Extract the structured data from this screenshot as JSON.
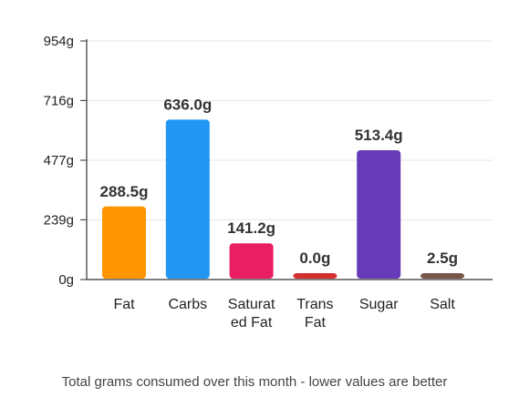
{
  "chart_data": {
    "type": "bar",
    "categories": [
      "Fat",
      "Carbs",
      "Saturated Fat",
      "Trans Fat",
      "Sugar",
      "Salt"
    ],
    "category_lines": [
      [
        "Fat"
      ],
      [
        "Carbs"
      ],
      [
        "Saturat",
        "ed Fat"
      ],
      [
        "Trans",
        "Fat"
      ],
      [
        "Sugar"
      ],
      [
        "Salt"
      ]
    ],
    "values": [
      288.5,
      636.0,
      141.2,
      0.0,
      513.4,
      2.5
    ],
    "data_labels": [
      "288.5g",
      "636.0g",
      "141.2g",
      "0.0g",
      "513.4g",
      "2.5g"
    ],
    "colors": [
      "#FF9500",
      "#2196F3",
      "#E91E63",
      "#D32F2F",
      "#673AB7",
      "#795548"
    ],
    "yticks": [
      0,
      239,
      477,
      716,
      954
    ],
    "ytick_labels": [
      "0g",
      "239g",
      "477g",
      "716g",
      "954g"
    ],
    "ylim": [
      0,
      954
    ],
    "grid": true,
    "legend": "none"
  },
  "caption": "Total grams consumed over this month - lower values are better"
}
